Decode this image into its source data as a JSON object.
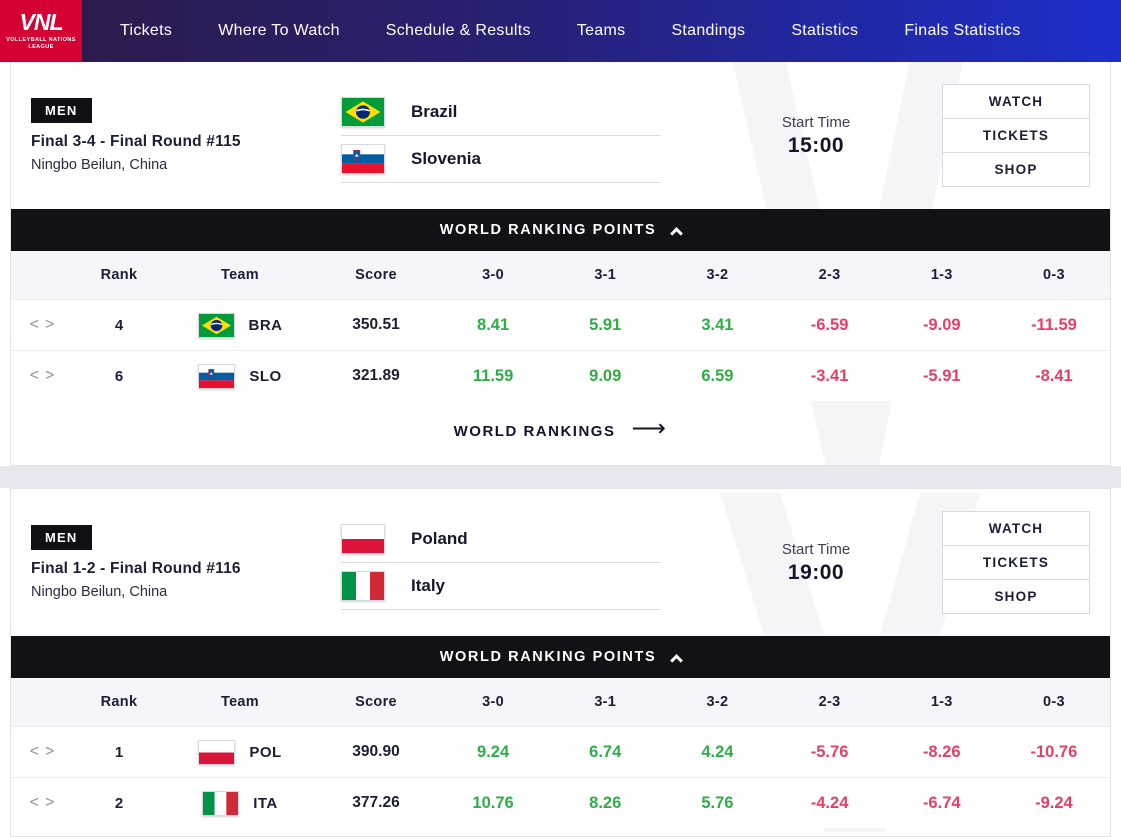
{
  "nav": {
    "logo": {
      "title": "VNL",
      "subtitle": "VOLLEYBALL NATIONS LEAGUE"
    },
    "items": [
      {
        "label": "Tickets"
      },
      {
        "label": "Where To Watch"
      },
      {
        "label": "Schedule & Results"
      },
      {
        "label": "Teams"
      },
      {
        "label": "Standings"
      },
      {
        "label": "Statistics"
      },
      {
        "label": "Finals Statistics"
      }
    ]
  },
  "colors": {
    "logo_red": "#d50033",
    "nav_gradient_start": "#2e1a45",
    "nav_gradient_end": "#1d2ecb",
    "bar_black": "#121216",
    "positive_green": "#2fae47",
    "negative_pink": "#e73e68"
  },
  "matches": [
    {
      "gender_badge": "MEN",
      "title": "Final 3-4 - Final Round #115",
      "venue": "Ningbo Beilun, China",
      "teams": [
        {
          "name": "Brazil",
          "flag": "br"
        },
        {
          "name": "Slovenia",
          "flag": "si"
        }
      ],
      "start_time_label": "Start Time",
      "start_time": "15:00",
      "actions": [
        "WATCH",
        "TICKETS",
        "SHOP"
      ],
      "ranking_header": "WORLD RANKING POINTS",
      "world_rankings_link": "WORLD RANKINGS",
      "table": {
        "columns": [
          "Rank",
          "Team",
          "Score",
          "3-0",
          "3-1",
          "3-2",
          "2-3",
          "1-3",
          "0-3"
        ],
        "rows": [
          {
            "rank": "4",
            "team": "BRA",
            "flag": "br",
            "score": "350.51",
            "values": [
              "8.41",
              "5.91",
              "3.41",
              "-6.59",
              "-9.09",
              "-11.59"
            ]
          },
          {
            "rank": "6",
            "team": "SLO",
            "flag": "si",
            "score": "321.89",
            "values": [
              "11.59",
              "9.09",
              "6.59",
              "-3.41",
              "-5.91",
              "-8.41"
            ]
          }
        ]
      }
    },
    {
      "gender_badge": "MEN",
      "title": "Final 1-2 - Final Round #116",
      "venue": "Ningbo Beilun, China",
      "teams": [
        {
          "name": "Poland",
          "flag": "pl"
        },
        {
          "name": "Italy",
          "flag": "it"
        }
      ],
      "start_time_label": "Start Time",
      "start_time": "19:00",
      "actions": [
        "WATCH",
        "TICKETS",
        "SHOP"
      ],
      "ranking_header": "WORLD RANKING POINTS",
      "table": {
        "columns": [
          "Rank",
          "Team",
          "Score",
          "3-0",
          "3-1",
          "3-2",
          "2-3",
          "1-3",
          "0-3"
        ],
        "rows": [
          {
            "rank": "1",
            "team": "POL",
            "flag": "pl",
            "score": "390.90",
            "values": [
              "9.24",
              "6.74",
              "4.24",
              "-5.76",
              "-8.26",
              "-10.76"
            ]
          },
          {
            "rank": "2",
            "team": "ITA",
            "flag": "it",
            "score": "377.26",
            "values": [
              "10.76",
              "8.26",
              "5.76",
              "-4.24",
              "-6.74",
              "-9.24"
            ]
          }
        ]
      }
    }
  ]
}
